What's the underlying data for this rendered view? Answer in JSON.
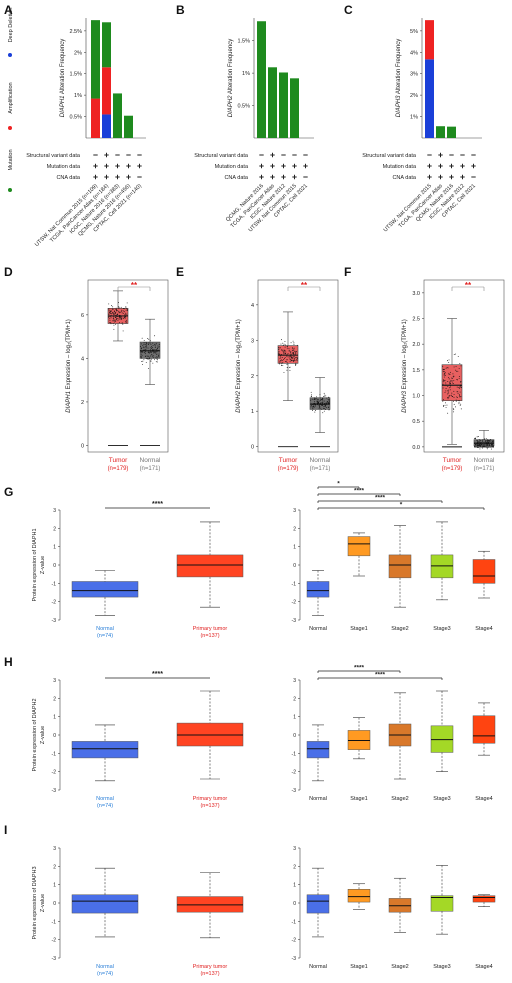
{
  "panel_letters": [
    "A",
    "B",
    "C",
    "D",
    "E",
    "F",
    "G",
    "H",
    "I"
  ],
  "colors": {
    "mutation": "#1e8a1e",
    "amplification": "#ee2222",
    "deep_deletion": "#1a3fd8",
    "tumor_box": "#e86060",
    "normal_box": "#707070",
    "sig": "#e02020",
    "normal_cpt": "#4a6fe8",
    "stage1": "#ff9a22",
    "stage2": "#d9782a",
    "stage3": "#a4d826",
    "stage4": "#ff4411",
    "primary": "#ff4422",
    "label_blue": "#2a7fd8",
    "label_red": "#e02020"
  },
  "alteration": {
    "legend": [
      "Deep Deletion",
      "Amplification",
      "Mutation"
    ],
    "row_labels": [
      "Structural variant data",
      "Mutation data",
      "CNA data"
    ],
    "panels": [
      {
        "ylabel_gene": "DIAPH1",
        "ylabel_rest": " Alteration Frequency",
        "yticks": [
          "0.5%",
          "1%",
          "1.5%",
          "2%",
          "2.5%"
        ],
        "studies": [
          "UTSW, Nat Commun 2015 (n=109)",
          "TCGA, PanCancer Atlas (n=184)",
          "ICGC, Nature 2016 (n=383)",
          "QCMG, Nature 2016 (n=456)",
          "CPTAC, Cell 2021 (n=140)"
        ]
      },
      {
        "ylabel_gene": "DIAPH2",
        "ylabel_rest": " Alteration Frequency",
        "yticks": [
          "0.5%",
          "1%",
          "1.5%"
        ],
        "studies": [
          "QCMG, Nature 2016",
          "TCGA, PanCancer Atlas",
          "ICGC, Nature 2012",
          "UTSW, Nat Commun 2015",
          "CPTAC, Cell 2021"
        ]
      },
      {
        "ylabel_gene": "DIAPH3",
        "ylabel_rest": " Alteration Frequency",
        "yticks": [
          "1%",
          "2%",
          "3%",
          "4%",
          "5%"
        ],
        "studies": [
          "UTSW, Nat Commun 2015",
          "TCGA, PanCancer Atlas",
          "QCMG, Nature 2016",
          "ICGC, Nature 2012",
          "CPTAC, Cell 2021"
        ]
      }
    ]
  },
  "gepia": {
    "sig": "**",
    "tumor_label": "Tumor",
    "tumor_n": "(n=179)",
    "normal_label": "Normal",
    "normal_n": "(n=171)",
    "panels": [
      {
        "ylabel_gene": "DIAPH1",
        "ylabel_rest": " Expression – log₂(TPM+1)",
        "yticks": [
          "0",
          "2",
          "4",
          "6"
        ]
      },
      {
        "ylabel_gene": "DIAPH2",
        "ylabel_rest": " Expression – log₂(TPM+1)",
        "yticks": [
          "0",
          "1",
          "2",
          "3",
          "4"
        ]
      },
      {
        "ylabel_gene": "DIAPH3",
        "ylabel_rest": " Expression – log₂(TPM+1)",
        "yticks": [
          "0.0",
          "0.5",
          "1.0",
          "1.5",
          "2.0",
          "2.5",
          "3.0"
        ]
      }
    ]
  },
  "cptac": {
    "yticks": [
      "-3",
      "-2",
      "-1",
      "0",
      "1",
      "2",
      "3"
    ],
    "normal_label": "Normal",
    "normal_n": "(n=74)",
    "primary_label": "Primary tumor",
    "primary_n": "(n=137)",
    "stage_labels": [
      "Normal",
      "Stage1",
      "Stage2",
      "Stage3",
      "Stage4"
    ],
    "rows": [
      {
        "ylabel1": "Protein expression of DIAPH1",
        "ylabel2": "Z-value",
        "sig_left": "****",
        "sig_right": [
          {
            "text": "*",
            "to": 1
          },
          {
            "text": "****",
            "to": 2
          },
          {
            "text": "****",
            "to": 3
          },
          {
            "text": "*",
            "to": 4
          }
        ]
      },
      {
        "ylabel1": "Protein expression of DIAPH2",
        "ylabel2": "Z-value",
        "sig_left": "****",
        "sig_right": [
          {
            "text": "****",
            "to": 2
          },
          {
            "text": "****",
            "to": 3
          }
        ]
      },
      {
        "ylabel1": "Protein expression of DIAPH3",
        "ylabel2": "Z-value",
        "sig_left": "",
        "sig_right": []
      }
    ]
  },
  "chart_data": [
    {
      "type": "bar",
      "panel": "A",
      "title": "",
      "ylabel": "DIAPH1 Alteration Frequency",
      "categories": [
        "UTSW, Nat Commun 2015 (n=109)",
        "TCGA, PanCancer Atlas (n=184)",
        "ICGC, Nature 2016 (n=383)",
        "QCMG, Nature 2016 (n=456)",
        "CPTAC, Cell 2021 (n=140)"
      ],
      "ylim": [
        0,
        2.8
      ],
      "series": [
        {
          "name": "Deep Deletion",
          "values": [
            0,
            0.55,
            0,
            0,
            0
          ]
        },
        {
          "name": "Amplification",
          "values": [
            0.92,
            1.1,
            0,
            0,
            0
          ]
        },
        {
          "name": "Mutation",
          "values": [
            1.83,
            1.05,
            1.04,
            0.52,
            0
          ]
        }
      ]
    },
    {
      "type": "bar",
      "panel": "B",
      "title": "",
      "ylabel": "DIAPH2 Alteration Frequency",
      "categories": [
        "QCMG, Nature 2016",
        "TCGA, PanCancer Atlas",
        "ICGC, Nature 2012",
        "UTSW, Nat Commun 2015",
        "CPTAC, Cell 2021"
      ],
      "ylim": [
        0,
        1.85
      ],
      "series": [
        {
          "name": "Mutation",
          "values": [
            1.8,
            1.09,
            1.01,
            0.92,
            0
          ]
        }
      ]
    },
    {
      "type": "bar",
      "panel": "C",
      "title": "",
      "ylabel": "DIAPH3 Alteration Frequency",
      "categories": [
        "UTSW, Nat Commun 2015",
        "TCGA, PanCancer Atlas",
        "QCMG, Nature 2016",
        "ICGC, Nature 2012",
        "CPTAC, Cell 2021"
      ],
      "ylim": [
        0,
        5.6
      ],
      "series": [
        {
          "name": "Deep Deletion",
          "values": [
            3.67,
            0,
            0,
            0,
            0
          ]
        },
        {
          "name": "Amplification",
          "values": [
            1.83,
            0,
            0,
            0,
            0
          ]
        },
        {
          "name": "Mutation",
          "values": [
            0,
            0.55,
            0.53,
            0,
            0
          ]
        }
      ]
    },
    {
      "type": "box",
      "panel": "D",
      "ylabel": "DIAPH1 Expression – log2(TPM+1)",
      "ylim": [
        -0.3,
        7.6
      ],
      "categories": [
        "Tumor",
        "Normal"
      ],
      "boxes": [
        {
          "q1": 5.6,
          "median": 5.95,
          "q3": 6.3,
          "lo": 4.8,
          "hi": 7.1
        },
        {
          "q1": 4.0,
          "median": 4.35,
          "q3": 4.75,
          "lo": 2.8,
          "hi": 5.8
        }
      ]
    },
    {
      "type": "box",
      "panel": "E",
      "ylabel": "DIAPH2 Expression – log2(TPM+1)",
      "ylim": [
        -0.15,
        4.7
      ],
      "categories": [
        "Tumor",
        "Normal"
      ],
      "boxes": [
        {
          "q1": 2.35,
          "median": 2.58,
          "q3": 2.85,
          "lo": 1.3,
          "hi": 3.8
        },
        {
          "q1": 1.05,
          "median": 1.2,
          "q3": 1.38,
          "lo": 0.4,
          "hi": 1.95
        }
      ]
    },
    {
      "type": "box",
      "panel": "F",
      "ylabel": "DIAPH3 Expression – log2(TPM+1)",
      "ylim": [
        -0.1,
        3.25
      ],
      "categories": [
        "Tumor",
        "Normal"
      ],
      "boxes": [
        {
          "q1": 0.9,
          "median": 1.2,
          "q3": 1.6,
          "lo": 0.05,
          "hi": 2.5
        },
        {
          "q1": 0.02,
          "median": 0.07,
          "q3": 0.14,
          "lo": 0,
          "hi": 0.32
        }
      ]
    },
    {
      "type": "box",
      "panel": "G",
      "ylabel": "Protein expression of DIAPH1 Z-value",
      "ylim": [
        -3,
        3
      ],
      "categories": [
        "Normal",
        "Primary tumor",
        "Normal",
        "Stage1",
        "Stage2",
        "Stage3",
        "Stage4"
      ],
      "boxes": [
        {
          "q1": -1.75,
          "median": -1.4,
          "q3": -0.9,
          "lo": -2.75,
          "hi": -0.3
        },
        {
          "q1": -0.65,
          "median": 0.0,
          "q3": 0.55,
          "lo": -2.3,
          "hi": 2.35
        },
        {
          "q1": -1.75,
          "median": -1.4,
          "q3": -0.9,
          "lo": -2.75,
          "hi": -0.3
        },
        {
          "q1": 0.5,
          "median": 1.15,
          "q3": 1.55,
          "lo": -0.6,
          "hi": 1.75
        },
        {
          "q1": -0.7,
          "median": 0.0,
          "q3": 0.55,
          "lo": -2.3,
          "hi": 2.15
        },
        {
          "q1": -0.7,
          "median": -0.05,
          "q3": 0.55,
          "lo": -1.9,
          "hi": 2.35
        },
        {
          "q1": -1.0,
          "median": -0.6,
          "q3": 0.3,
          "lo": -1.8,
          "hi": 0.75
        }
      ]
    },
    {
      "type": "box",
      "panel": "H",
      "ylabel": "Protein expression of DIAPH2 Z-value",
      "ylim": [
        -3,
        3
      ],
      "categories": [
        "Normal",
        "Primary tumor",
        "Normal",
        "Stage1",
        "Stage2",
        "Stage3",
        "Stage4"
      ],
      "boxes": [
        {
          "q1": -1.25,
          "median": -0.75,
          "q3": -0.35,
          "lo": -2.5,
          "hi": 0.55
        },
        {
          "q1": -0.6,
          "median": 0.0,
          "q3": 0.65,
          "lo": -2.4,
          "hi": 2.4
        },
        {
          "q1": -1.25,
          "median": -0.75,
          "q3": -0.35,
          "lo": -2.5,
          "hi": 0.55
        },
        {
          "q1": -0.8,
          "median": -0.3,
          "q3": 0.25,
          "lo": -1.3,
          "hi": 0.95
        },
        {
          "q1": -0.6,
          "median": 0.0,
          "q3": 0.6,
          "lo": -2.4,
          "hi": 2.3
        },
        {
          "q1": -0.95,
          "median": -0.25,
          "q3": 0.5,
          "lo": -2.0,
          "hi": 2.4
        },
        {
          "q1": -0.45,
          "median": -0.05,
          "q3": 1.05,
          "lo": -1.1,
          "hi": 1.75
        }
      ]
    },
    {
      "type": "box",
      "panel": "I",
      "ylabel": "Protein expression of DIAPH3 Z-value",
      "ylim": [
        -3,
        3
      ],
      "categories": [
        "Normal",
        "Primary tumor",
        "Normal",
        "Stage1",
        "Stage2",
        "Stage3",
        "Stage4"
      ],
      "boxes": [
        {
          "q1": -0.55,
          "median": 0.1,
          "q3": 0.45,
          "lo": -1.85,
          "hi": 1.9
        },
        {
          "q1": -0.5,
          "median": -0.1,
          "q3": 0.35,
          "lo": -1.9,
          "hi": 1.65
        },
        {
          "q1": -0.55,
          "median": 0.1,
          "q3": 0.45,
          "lo": -1.85,
          "hi": 1.9
        },
        {
          "q1": 0.05,
          "median": 0.35,
          "q3": 0.75,
          "lo": -0.35,
          "hi": 1.05
        },
        {
          "q1": -0.5,
          "median": -0.15,
          "q3": 0.25,
          "lo": -1.6,
          "hi": 1.35
        },
        {
          "q1": -0.45,
          "median": 0.3,
          "q3": 0.4,
          "lo": -1.7,
          "hi": 2.05
        },
        {
          "q1": 0.05,
          "median": 0.3,
          "q3": 0.4,
          "lo": -0.2,
          "hi": 0.45
        }
      ]
    }
  ]
}
